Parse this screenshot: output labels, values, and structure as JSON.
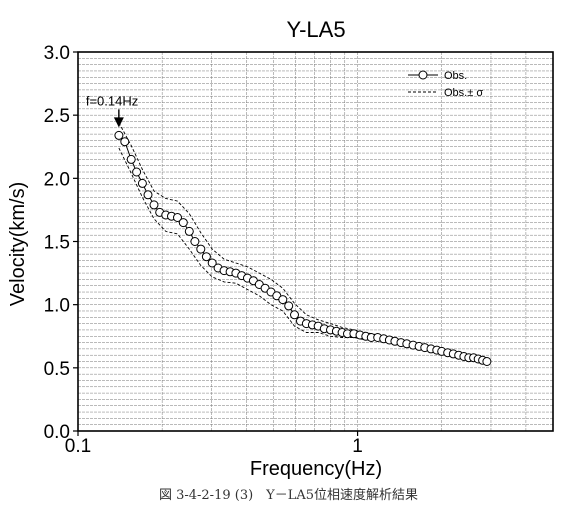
{
  "caption": "図 3-4-2-19 (3)　Y－LA5位相速度解析結果",
  "chart_data": {
    "type": "scatter",
    "title": "Y-LA5",
    "xlabel": "Frequency(Hz)",
    "ylabel": "Velocity(km/s)",
    "x_scale": "log",
    "xlim": [
      0.1,
      5
    ],
    "ylim": [
      0.0,
      3.0
    ],
    "x_ticks": [
      0.1,
      1
    ],
    "x_tick_labels": [
      "0.1",
      "1"
    ],
    "y_ticks": [
      0.0,
      0.5,
      1.0,
      1.5,
      2.0,
      2.5,
      3.0
    ],
    "y_tick_labels": [
      "0.0",
      "0.5",
      "1.0",
      "1.5",
      "2.0",
      "2.5",
      "3.0"
    ],
    "grid": true,
    "legend_position": "top-right",
    "legend": [
      "Obs.",
      "Obs.± σ"
    ],
    "annotation": {
      "text": "f=0.14Hz",
      "x": 0.14,
      "y": 2.34
    },
    "series": [
      {
        "name": "Obs.",
        "style": "line-open-circle",
        "x": [
          0.14,
          0.147,
          0.155,
          0.162,
          0.17,
          0.178,
          0.187,
          0.196,
          0.206,
          0.216,
          0.227,
          0.238,
          0.25,
          0.262,
          0.275,
          0.288,
          0.302,
          0.317,
          0.333,
          0.35,
          0.367,
          0.385,
          0.404,
          0.424,
          0.445,
          0.467,
          0.49,
          0.514,
          0.54,
          0.567,
          0.595,
          0.625,
          0.656,
          0.689,
          0.723,
          0.76,
          0.8,
          0.84,
          0.88,
          0.92,
          0.97,
          1.02,
          1.07,
          1.12,
          1.18,
          1.24,
          1.3,
          1.36,
          1.43,
          1.5,
          1.58,
          1.66,
          1.74,
          1.83,
          1.92,
          2.0,
          2.1,
          2.2,
          2.3,
          2.4,
          2.5,
          2.6,
          2.7,
          2.8,
          2.9
        ],
        "y": [
          2.34,
          2.29,
          2.15,
          2.05,
          1.96,
          1.87,
          1.79,
          1.73,
          1.71,
          1.7,
          1.69,
          1.65,
          1.58,
          1.5,
          1.44,
          1.38,
          1.33,
          1.29,
          1.27,
          1.26,
          1.25,
          1.23,
          1.21,
          1.19,
          1.16,
          1.13,
          1.1,
          1.07,
          1.04,
          0.99,
          0.92,
          0.87,
          0.85,
          0.84,
          0.83,
          0.81,
          0.8,
          0.79,
          0.78,
          0.77,
          0.77,
          0.76,
          0.75,
          0.74,
          0.74,
          0.73,
          0.72,
          0.71,
          0.7,
          0.69,
          0.68,
          0.67,
          0.66,
          0.65,
          0.64,
          0.63,
          0.62,
          0.61,
          0.6,
          0.59,
          0.58,
          0.58,
          0.57,
          0.56,
          0.55
        ]
      },
      {
        "name": "Obs.± σ",
        "style": "dashed",
        "x": [
          0.14,
          0.155,
          0.17,
          0.187,
          0.206,
          0.227,
          0.25,
          0.275,
          0.302,
          0.333,
          0.367,
          0.404,
          0.445,
          0.49,
          0.54,
          0.595,
          0.656,
          0.723,
          0.8,
          0.88,
          0.97,
          1.07,
          1.18,
          1.3,
          1.43,
          1.58,
          1.74,
          1.92,
          2.1,
          2.3,
          2.5,
          2.7,
          2.9
        ],
        "y_upper": [
          2.44,
          2.26,
          2.07,
          1.9,
          1.84,
          1.82,
          1.72,
          1.57,
          1.44,
          1.36,
          1.33,
          1.3,
          1.25,
          1.2,
          1.13,
          1.01,
          0.92,
          0.88,
          0.85,
          0.82,
          0.8,
          0.78,
          0.76,
          0.74,
          0.72,
          0.7,
          0.68,
          0.66,
          0.64,
          0.62,
          0.6,
          0.59,
          0.57
        ],
        "y_lower": [
          2.24,
          2.04,
          1.85,
          1.68,
          1.58,
          1.56,
          1.44,
          1.31,
          1.22,
          1.18,
          1.17,
          1.12,
          1.07,
          1.0,
          0.95,
          0.83,
          0.78,
          0.78,
          0.75,
          0.74,
          0.74,
          0.72,
          0.72,
          0.7,
          0.68,
          0.66,
          0.64,
          0.62,
          0.6,
          0.58,
          0.56,
          0.55,
          0.53
        ]
      }
    ]
  }
}
